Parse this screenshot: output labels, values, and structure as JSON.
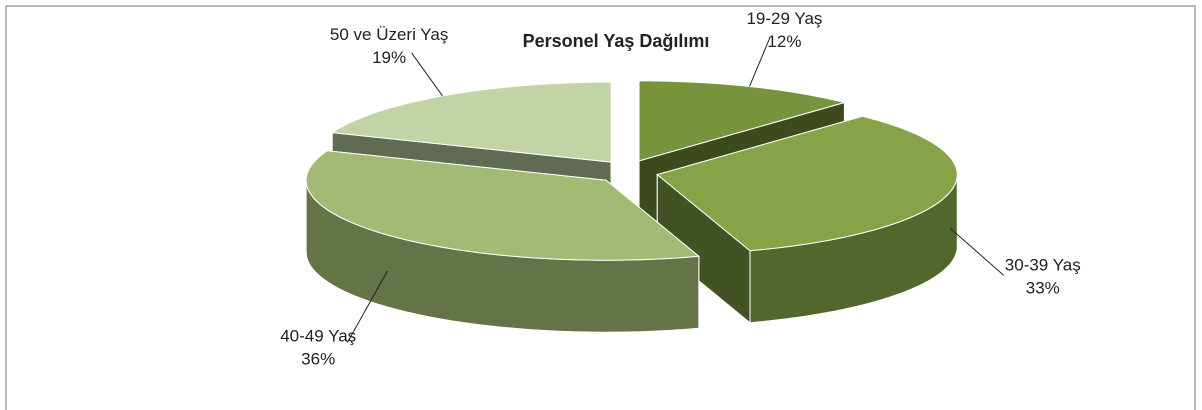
{
  "chart_data": {
    "type": "pie",
    "title": "Personel Yaş Dağılımı",
    "categories": [
      "19-29 Yaş",
      "30-39 Yaş",
      "40-49 Yaş",
      "50 ve Üzeri Yaş"
    ],
    "values": [
      12,
      33,
      36,
      19
    ],
    "value_labels": [
      "12%",
      "33%",
      "36%",
      "19%"
    ],
    "colors": [
      "#77933c",
      "#86a447",
      "#a3ba75",
      "#c2d3a6"
    ]
  }
}
